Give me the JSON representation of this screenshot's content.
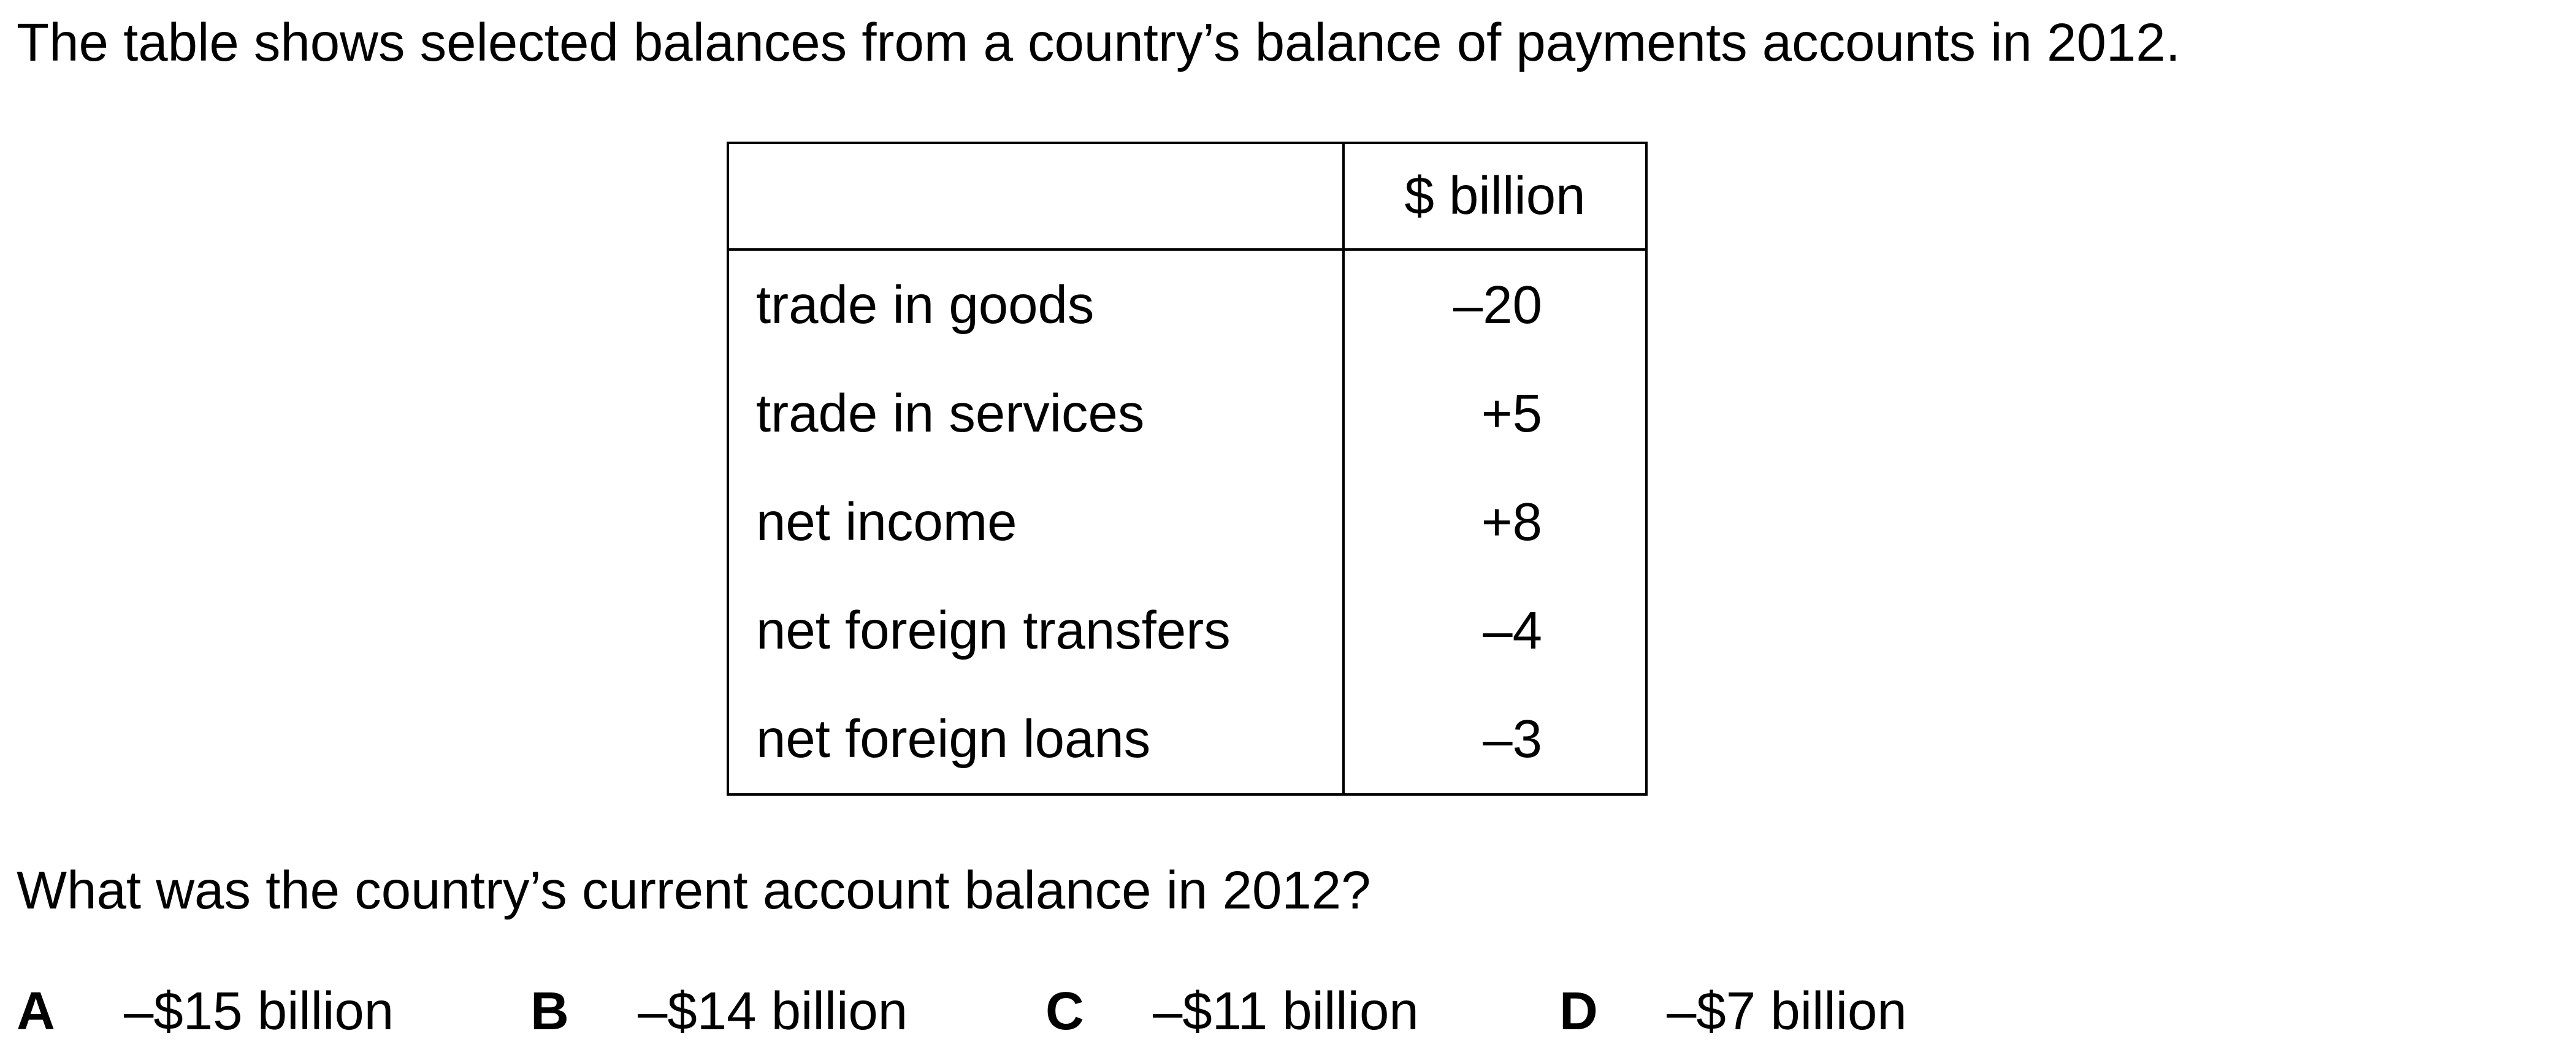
{
  "intro": "The table shows selected balances from a country’s balance of payments accounts in 2012.",
  "table": {
    "header_label": "",
    "header_value": "$ billion",
    "rows": [
      {
        "label": "trade in goods",
        "value": "–20"
      },
      {
        "label": "trade in services",
        "value": "+5"
      },
      {
        "label": "net income",
        "value": "+8"
      },
      {
        "label": "net foreign transfers",
        "value": "–4"
      },
      {
        "label": "net foreign loans",
        "value": "–3"
      }
    ]
  },
  "question": "What was the country’s current account balance in 2012?",
  "options": [
    {
      "letter": "A",
      "text": "–$15 billion"
    },
    {
      "letter": "B",
      "text": "–$14 billion"
    },
    {
      "letter": "C",
      "text": "–$11 billion"
    },
    {
      "letter": "D",
      "text": "–$7 billion"
    }
  ]
}
